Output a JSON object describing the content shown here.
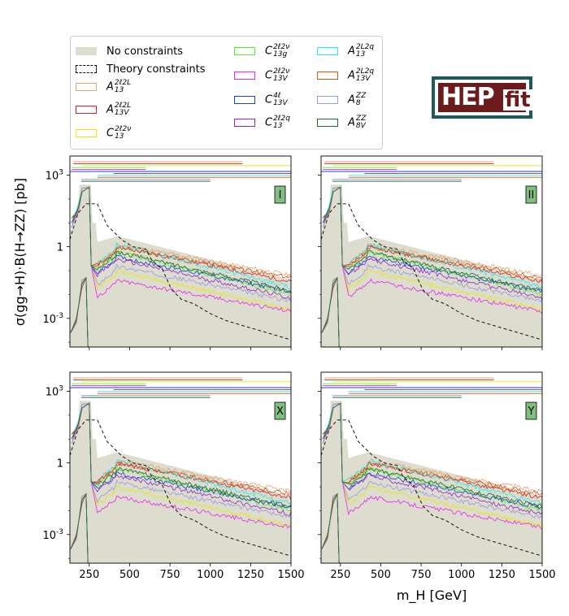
{
  "chart_data": {
    "type": "line",
    "ylabel": "σ(gg→H)·B(H→ZZ) [pb]",
    "xlabel": "m_H [GeV]",
    "xlim": [
      130,
      1500
    ],
    "ylim_log10": [
      -4.2,
      3.8
    ],
    "y_scale": "log",
    "x_ticks": [
      "250",
      "500",
      "750",
      "1000",
      "1250",
      "1500"
    ],
    "y_ticks": [
      "10^-3",
      "1",
      "10^3"
    ],
    "legend": [
      {
        "label": "No constraints",
        "color": "#dcdccf",
        "style": "fill"
      },
      {
        "label": "Theory constraints",
        "color": "#000000",
        "style": "dashed"
      },
      {
        "label": "A_13^{2ℓ2L}",
        "color": "#e8a070",
        "style": "line"
      },
      {
        "label": "A_13V^{2ℓ2L}",
        "color": "#e31a1c",
        "style": "line"
      },
      {
        "label": "C_13^{2ℓ2ν}",
        "color": "#e8e800",
        "style": "line"
      },
      {
        "label": "C_13g^{2ℓ2ν}",
        "color": "#55ee22",
        "style": "line"
      },
      {
        "label": "C_13V^{2ℓ2ν}",
        "color": "#ee22ee",
        "style": "line"
      },
      {
        "label": "C_13V^{4ℓ}",
        "color": "#1144cc",
        "style": "line"
      },
      {
        "label": "C_13^{2ℓ2q}",
        "color": "#9922cc",
        "style": "line"
      },
      {
        "label": "A_13^{2L2q}",
        "color": "#22eeee",
        "style": "line"
      },
      {
        "label": "A_13V^{2L2q}",
        "color": "#cc5511",
        "style": "line"
      },
      {
        "label": "A_8^{ZZ}",
        "color": "#9999dd",
        "style": "line"
      },
      {
        "label": "A_8V^{ZZ}",
        "color": "#226633",
        "style": "line"
      }
    ],
    "panels": [
      {
        "label": "I",
        "position": "top-left"
      },
      {
        "label": "II",
        "position": "top-right"
      },
      {
        "label": "X",
        "position": "bottom-left"
      },
      {
        "label": "Y",
        "position": "bottom-right"
      }
    ],
    "mass_range_bars": [
      {
        "series": "A_13^{2ℓ2L}",
        "x": [
          150,
          1200
        ]
      },
      {
        "series": "A_13V^{2ℓ2L}",
        "x": [
          150,
          1200
        ]
      },
      {
        "series": "C_13^{2ℓ2ν}",
        "x": [
          200,
          1500
        ]
      },
      {
        "series": "C_13g^{2ℓ2ν}",
        "x": [
          140,
          600
        ]
      },
      {
        "series": "C_13V^{2ℓ2ν}",
        "x": [
          140,
          600
        ]
      },
      {
        "series": "C_13V^{4ℓ}",
        "x": [
          130,
          1500
        ]
      },
      {
        "series": "C_13^{2ℓ2q}",
        "x": [
          400,
          1500
        ]
      },
      {
        "series": "A_13^{2L2q}",
        "x": [
          300,
          1500
        ]
      },
      {
        "series": "A_13V^{2L2q}",
        "x": [
          300,
          1500
        ]
      },
      {
        "series": "A_8^{ZZ}",
        "x": [
          200,
          1000
        ]
      },
      {
        "series": "A_8V^{ZZ}",
        "x": [
          200,
          1000
        ]
      }
    ],
    "grid": false,
    "legend_position": "top-left"
  },
  "logo": {
    "hep": "HEP",
    "fit": "fit"
  },
  "legend_labels": [
    {
      "base": "No constraints",
      "sub": "",
      "sup": ""
    },
    {
      "base": "Theory constraints",
      "sub": "",
      "sup": ""
    },
    {
      "base": "A",
      "sub": "13",
      "sup": "2ℓ2L"
    },
    {
      "base": "A",
      "sub": "13V",
      "sup": "2ℓ2L"
    },
    {
      "base": "C",
      "sub": "13",
      "sup": "2ℓ2ν"
    },
    {
      "base": "C",
      "sub": "13g",
      "sup": "2ℓ2ν"
    },
    {
      "base": "C",
      "sub": "13V",
      "sup": "2ℓ2ν"
    },
    {
      "base": "C",
      "sub": "13V",
      "sup": "4ℓ"
    },
    {
      "base": "C",
      "sub": "13",
      "sup": "2ℓ2q"
    },
    {
      "base": "A",
      "sub": "13",
      "sup": "2L2q"
    },
    {
      "base": "A",
      "sub": "13V",
      "sup": "2L2q"
    },
    {
      "base": "A",
      "sub": "8",
      "sup": "ZZ"
    },
    {
      "base": "A",
      "sub": "8V",
      "sup": "ZZ"
    }
  ]
}
